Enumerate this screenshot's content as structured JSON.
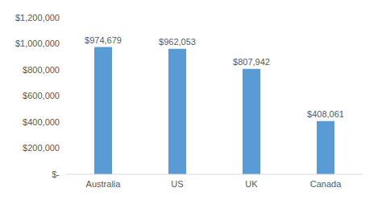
{
  "chart_data": {
    "type": "bar",
    "categories": [
      "Australia",
      "US",
      "UK",
      "Canada"
    ],
    "values": [
      974679,
      962053,
      807942,
      408061
    ],
    "value_labels": [
      "$974,679",
      "$962,053",
      "$807,942",
      "$408,061"
    ],
    "color": "#5b9bd5",
    "ylim": [
      0,
      1200000
    ],
    "yticks": [
      {
        "value": 0,
        "label": "$-"
      },
      {
        "value": 200000,
        "label": "$200,000"
      },
      {
        "value": 400000,
        "label": "$400,000"
      },
      {
        "value": 600000,
        "label": "$600,000"
      },
      {
        "value": 800000,
        "label": "$800,000"
      },
      {
        "value": 1000000,
        "label": "$1,000,000"
      },
      {
        "value": 1200000,
        "label": "$1,200,000"
      }
    ],
    "grid": false,
    "data_labels": true
  }
}
